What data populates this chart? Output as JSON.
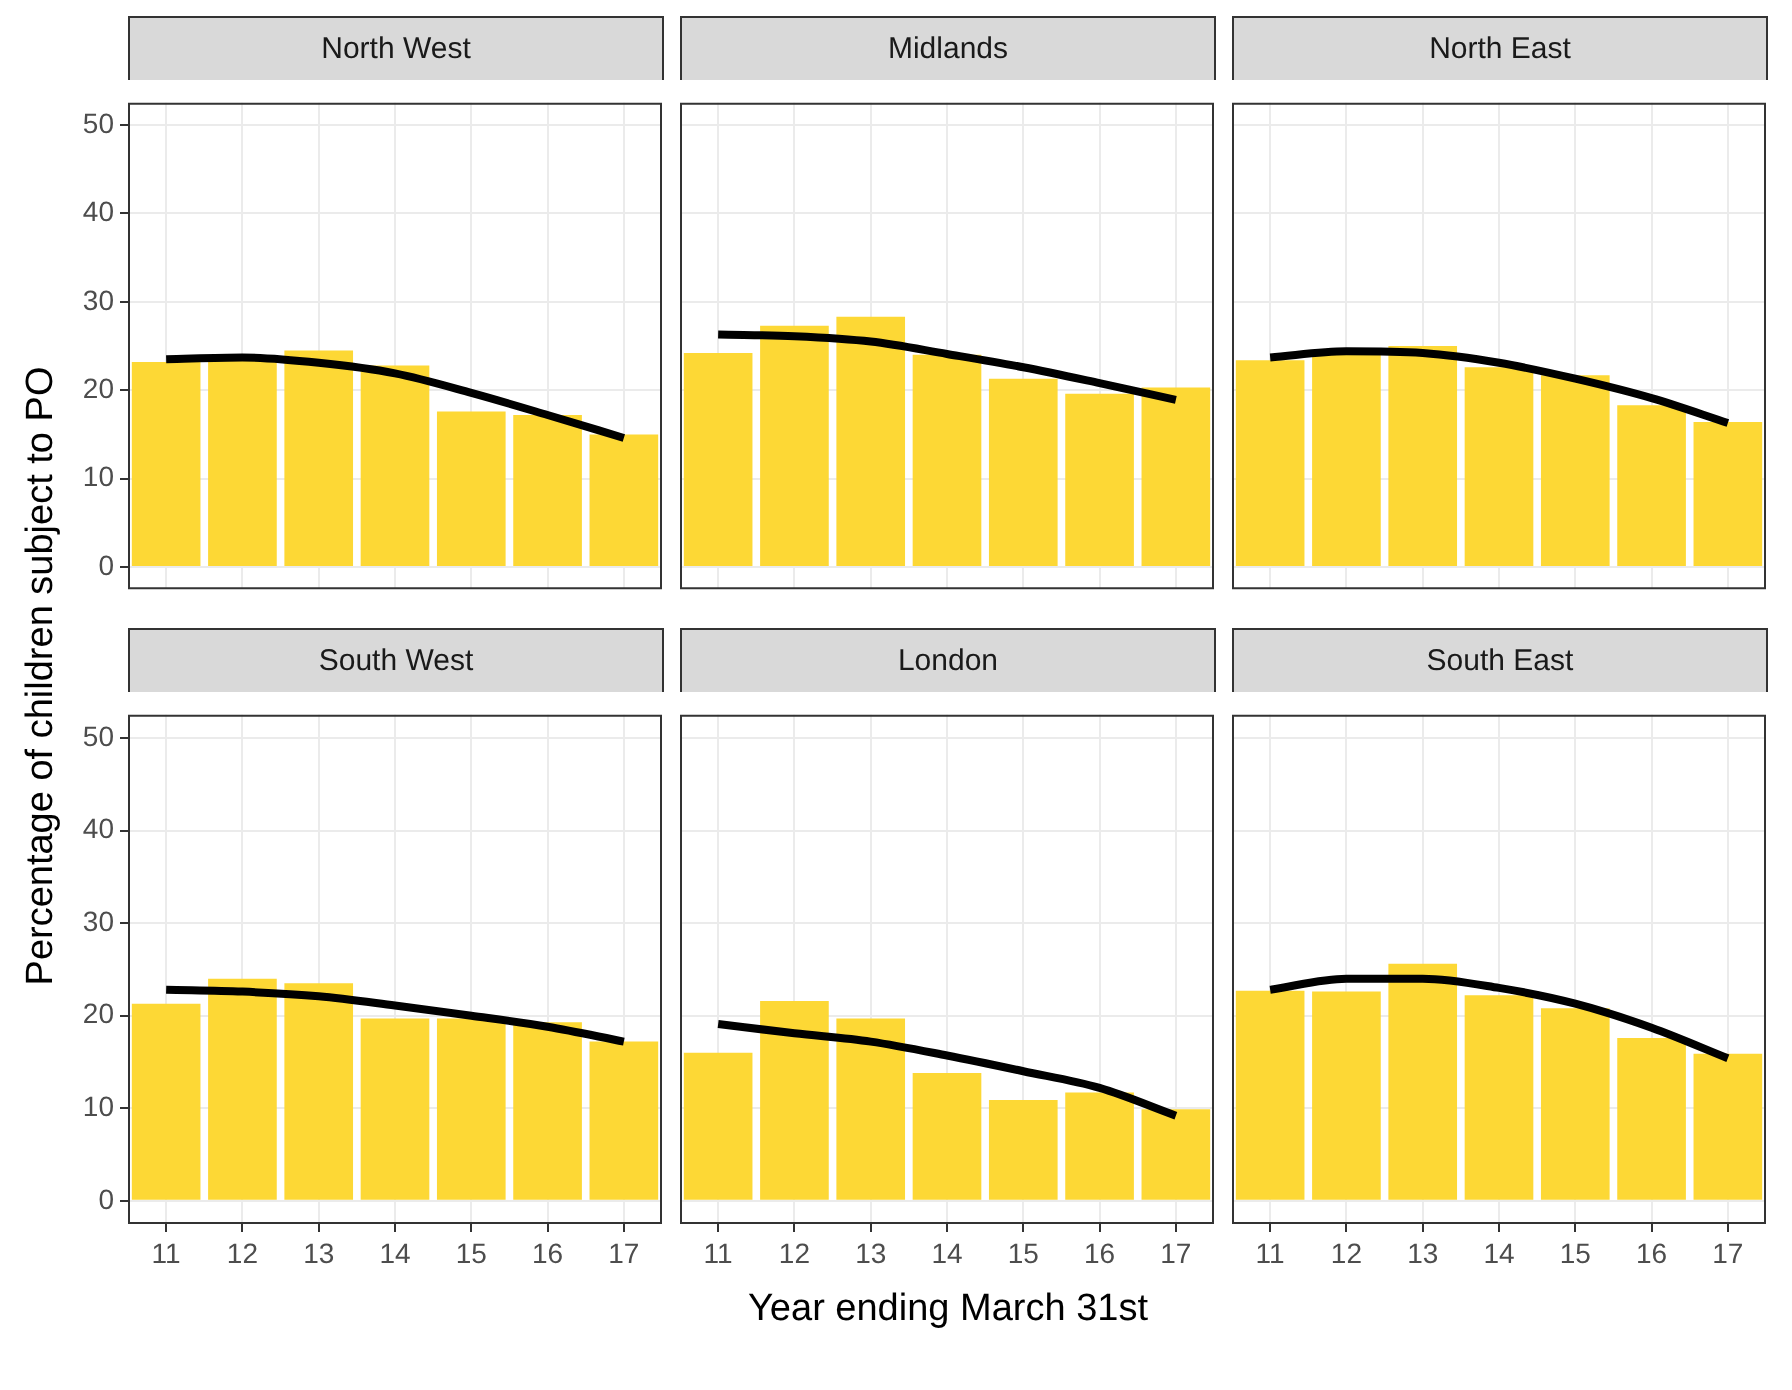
{
  "chart_data": [
    {
      "type": "bar",
      "title": "North West",
      "xlabel": "Year ending March 31st",
      "ylabel": "Percentage of children subject to PO",
      "categories": [
        "11",
        "12",
        "13",
        "14",
        "15",
        "16",
        "17"
      ],
      "series": [
        {
          "type": "bar",
          "color": "#fdd835",
          "values": [
            23.2,
            23.5,
            24.5,
            22.8,
            17.6,
            17.2,
            15.0
          ]
        },
        {
          "type": "line",
          "color": "#000000",
          "values": [
            23.5,
            23.7,
            23.1,
            21.9,
            19.7,
            17.2,
            14.6
          ]
        }
      ],
      "ylim": [
        -2.5,
        52.5
      ],
      "yticks": [
        0,
        10,
        20,
        30,
        40,
        50
      ],
      "grid": true,
      "marker": "none",
      "tick_labels": "y"
    },
    {
      "type": "bar",
      "title": "Midlands",
      "categories": [
        "11",
        "12",
        "13",
        "14",
        "15",
        "16",
        "17"
      ],
      "series": [
        {
          "type": "bar",
          "color": "#fdd835",
          "values": [
            24.2,
            27.3,
            28.3,
            24.0,
            21.3,
            19.6,
            20.3
          ]
        },
        {
          "type": "line",
          "color": "#000000",
          "values": [
            26.3,
            26.1,
            25.5,
            24.1,
            22.6,
            20.8,
            18.9
          ]
        }
      ],
      "ylim": [
        -2.5,
        52.5
      ],
      "yticks": [
        0,
        10,
        20,
        30,
        40,
        50
      ],
      "grid": true,
      "marker": "none",
      "tick_labels": false
    },
    {
      "type": "bar",
      "title": "North East",
      "categories": [
        "11",
        "12",
        "13",
        "14",
        "15",
        "16",
        "17"
      ],
      "series": [
        {
          "type": "bar",
          "color": "#fdd835",
          "values": [
            23.4,
            24.2,
            25.0,
            22.6,
            21.7,
            18.3,
            16.4
          ]
        },
        {
          "type": "line",
          "color": "#000000",
          "values": [
            23.7,
            24.4,
            24.2,
            23.1,
            21.3,
            19.1,
            16.3
          ]
        }
      ],
      "ylim": [
        -2.5,
        52.5
      ],
      "yticks": [
        0,
        10,
        20,
        30,
        40,
        50
      ],
      "grid": true,
      "marker": "none",
      "tick_labels": false
    },
    {
      "type": "bar",
      "title": "South West",
      "categories": [
        "11",
        "12",
        "13",
        "14",
        "15",
        "16",
        "17"
      ],
      "series": [
        {
          "type": "bar",
          "color": "#fdd835",
          "values": [
            21.3,
            24.0,
            23.5,
            19.7,
            19.7,
            19.3,
            17.2
          ]
        },
        {
          "type": "line",
          "color": "#000000",
          "values": [
            22.8,
            22.6,
            22.1,
            21.1,
            20.0,
            18.8,
            17.2
          ]
        }
      ],
      "ylim": [
        -2.5,
        52.5
      ],
      "yticks": [
        0,
        10,
        20,
        30,
        40,
        50
      ],
      "grid": true,
      "marker": "none"
    },
    {
      "type": "bar",
      "title": "London",
      "categories": [
        "11",
        "12",
        "13",
        "14",
        "15",
        "16",
        "17"
      ],
      "series": [
        {
          "type": "bar",
          "color": "#fdd835",
          "values": [
            16.0,
            21.6,
            19.7,
            13.8,
            10.9,
            11.7,
            9.9
          ]
        },
        {
          "type": "line",
          "color": "#000000",
          "values": [
            19.1,
            18.1,
            17.2,
            15.7,
            14.0,
            12.2,
            9.2
          ]
        }
      ],
      "ylim": [
        -2.5,
        52.5
      ],
      "yticks": [
        0,
        10,
        20,
        30,
        40,
        50
      ],
      "grid": true,
      "marker": "none",
      "tick_labels": "x"
    },
    {
      "type": "bar",
      "title": "South East",
      "categories": [
        "11",
        "12",
        "13",
        "14",
        "15",
        "16",
        "17"
      ],
      "series": [
        {
          "type": "bar",
          "color": "#fdd835",
          "values": [
            22.7,
            22.6,
            25.6,
            22.2,
            20.8,
            17.6,
            15.9
          ]
        },
        {
          "type": "line",
          "color": "#000000",
          "values": [
            22.8,
            24.0,
            24.0,
            23.0,
            21.3,
            18.7,
            15.4
          ]
        }
      ],
      "ylim": [
        -2.5,
        52.5
      ],
      "yticks": [
        0,
        10,
        20,
        30,
        40,
        50
      ],
      "grid": true,
      "marker": "none",
      "tick_labels": "x"
    }
  ]
}
